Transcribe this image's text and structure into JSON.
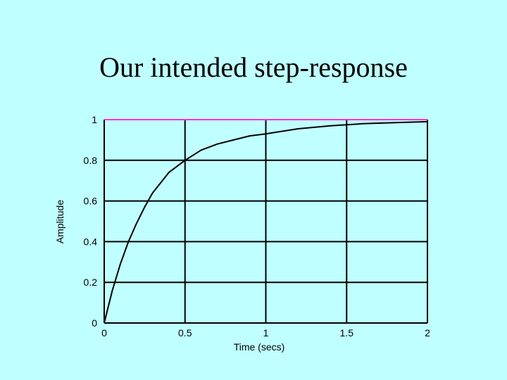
{
  "title": "Our intended step-response",
  "colors": {
    "background": "#c0ffff",
    "response": "#000000",
    "reference": "#ff33cc",
    "grid": "#000000"
  },
  "chart_data": {
    "type": "line",
    "title": "Our intended step-response",
    "xlabel": "Time (secs)",
    "ylabel": "Amplitude",
    "xlim": [
      0,
      2
    ],
    "ylim": [
      0,
      1
    ],
    "xticks": [
      0,
      0.5,
      1,
      1.5,
      2
    ],
    "xtick_labels": [
      "0",
      "0.5",
      "1",
      "1.5",
      "2"
    ],
    "yticks": [
      0,
      0.2,
      0.4,
      0.6,
      0.8,
      1
    ],
    "ytick_labels": [
      "0",
      "0.2",
      "0.4",
      "0.6",
      "0.8",
      "1"
    ],
    "grid": true,
    "series": [
      {
        "x": [
          0,
          0.05,
          0.1,
          0.15,
          0.2,
          0.25,
          0.3,
          0.35,
          0.4,
          0.5,
          0.6,
          0.7,
          0.8,
          0.9,
          1.0,
          1.2,
          1.4,
          1.6,
          1.8,
          2.0
        ],
        "y": [
          0,
          0.16,
          0.29,
          0.4,
          0.49,
          0.57,
          0.64,
          0.69,
          0.74,
          0.8,
          0.85,
          0.88,
          0.9,
          0.92,
          0.93,
          0.955,
          0.97,
          0.98,
          0.985,
          0.99
        ]
      },
      {
        "x": [
          0,
          2
        ],
        "y": [
          1,
          1
        ]
      }
    ]
  }
}
